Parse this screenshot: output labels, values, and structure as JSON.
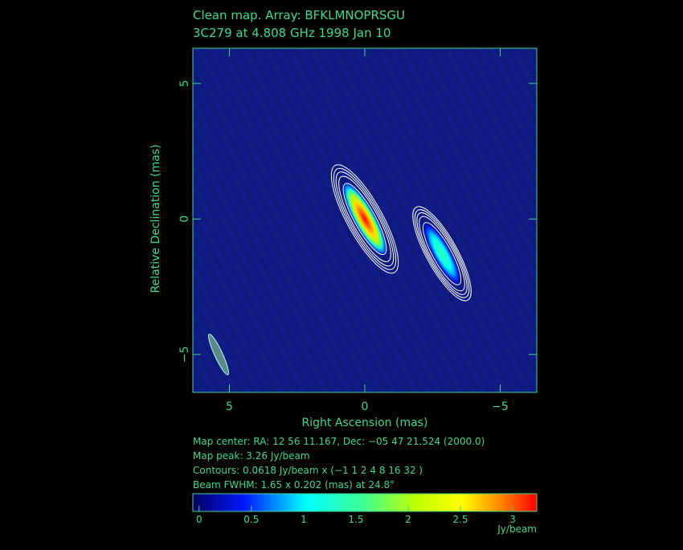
{
  "chart_data": {
    "type": "image",
    "title": "Clean map.  Array: BFKLMNOPRSGU",
    "subtitle": "3C279 at 4.808 GHz 1998 Jan 10",
    "x_label": "Right Ascension  (mas)",
    "y_label": "Relative Declination  (mas)",
    "xlim": [
      6.35,
      -6.35
    ],
    "ylim": [
      -6.4,
      6.3
    ],
    "xticks": [
      5,
      0,
      {
        "value": -5,
        "label": "−5"
      }
    ],
    "yticks": [
      5,
      0,
      {
        "value": -5,
        "label": "−5"
      }
    ],
    "components": [
      {
        "x": 0,
        "y": 0,
        "peak": 3.26
      },
      {
        "x": -2.85,
        "y": -1.28,
        "peak": 1.4
      }
    ],
    "beam": {
      "x": 5.4,
      "y": -5.0,
      "major": 1.65,
      "minor": 0.202,
      "pa": 24.8
    },
    "annotations": [
      "Map center:  RA: 12 56 11.167,  Dec: −05 47 21.524 (2000.0)",
      "Map peak: 3.26 Jy/beam",
      "Contours: 0.0618 Jy/beam x (−1 1 2 4 8 16 32 )",
      "Beam FWHM: 1.65 x 0.202 (mas) at 24.8°"
    ],
    "colorbar": {
      "label": "Jy/beam",
      "lim": [
        -0.06,
        3.23
      ],
      "ticks": [
        0,
        0.5,
        1,
        1.5,
        2,
        2.5,
        3
      ]
    }
  }
}
